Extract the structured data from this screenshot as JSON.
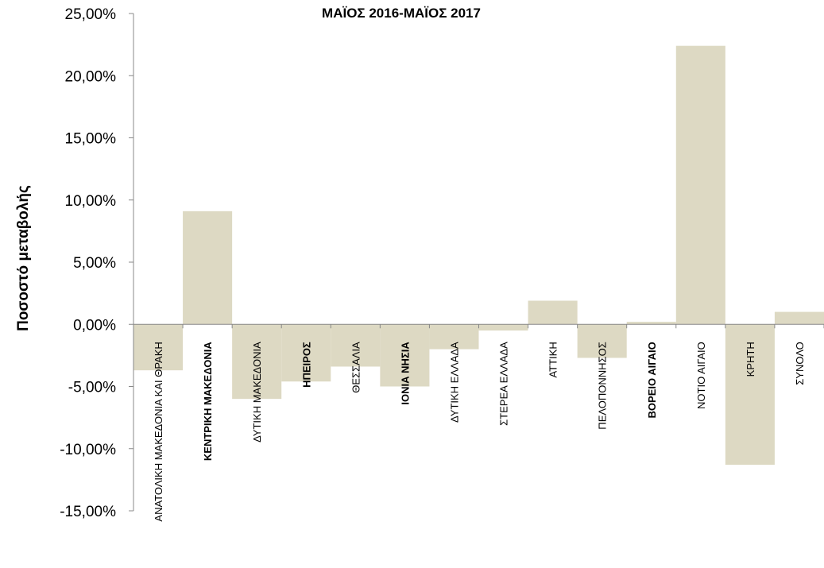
{
  "chart_data": {
    "type": "bar",
    "title": "ΜΑΪΟΣ 2016-ΜΑΪΟΣ 2017",
    "xlabel": "",
    "ylabel": "Ποσοστό μεταβολής",
    "ylim": [
      -15,
      25
    ],
    "yticks": [
      25,
      20,
      15,
      10,
      5,
      0,
      -5,
      -10,
      -15
    ],
    "ytick_labels": [
      "25,00%",
      "20,00%",
      "15,00%",
      "10,00%",
      "5,00%",
      "0,00%",
      "-5,00%",
      "-10,00%",
      "-15,00%"
    ],
    "categories": [
      "ΑΝΑΤΟΛΙΚΗ ΜΑΚΕΔΟΝΙΑ ΚΑΙ ΘΡΑΚΗ",
      "ΚΕΝΤΡΙΚΗ ΜΑΚΕΔΟΝΙΑ",
      "ΔΥΤΙΚΗ ΜΑΚΕΔΟΝΙΑ",
      "ΗΠΕΙΡΟΣ",
      "ΘΕΣΣΑΛΙΑ",
      "ΙΟΝΙΑ ΝΗΣΙΑ",
      "ΔΥΤΙΚΗ ΕΛΛΑΔΑ",
      "ΣΤΕΡΕΑ ΕΛΛΑΔΑ",
      "ΑΤΤΙΚΗ",
      "ΠΕΛΟΠΟΝΝΗΣΟΣ",
      "ΒΟΡΕΙΟ ΑΙΓΑΙΟ",
      "ΝΟΤΙΟ ΑΙΓΑΙΟ",
      "ΚΡΗΤΗ",
      "ΣΥΝΟΛΟ"
    ],
    "bold_categories": [
      false,
      true,
      false,
      true,
      false,
      true,
      false,
      false,
      false,
      false,
      true,
      false,
      false,
      false
    ],
    "values": [
      -3.7,
      9.1,
      -6.0,
      -4.6,
      -3.4,
      -5.0,
      -2.0,
      -0.5,
      1.9,
      -2.7,
      0.2,
      22.4,
      -11.3,
      1.0
    ],
    "colors": {
      "bar": "#ddd9c3",
      "axis": "#888888",
      "text": "#000000"
    },
    "grid": false
  }
}
